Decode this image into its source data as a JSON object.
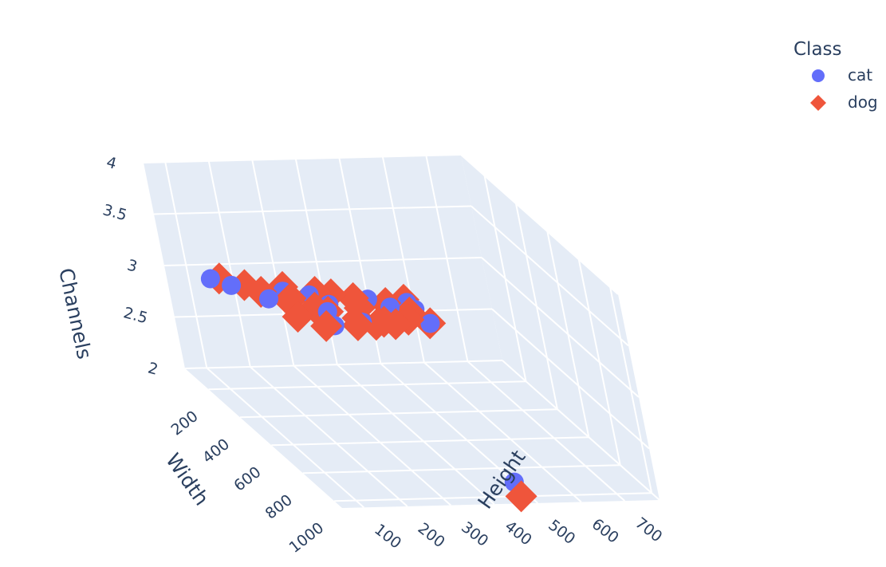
{
  "chart_data": {
    "type": "scatter3d",
    "axes": {
      "x": {
        "title": "Width",
        "ticks": [
          "200",
          "400",
          "600",
          "800",
          "1000"
        ],
        "range": [
          50,
          1050
        ]
      },
      "y": {
        "title": "Height",
        "ticks": [
          "100",
          "200",
          "300",
          "400",
          "500",
          "600",
          "700"
        ],
        "range": [
          50,
          780
        ]
      },
      "z": {
        "title": "Channels",
        "ticks": [
          "2",
          "2.5",
          "3",
          "3.5",
          "4"
        ],
        "range": [
          2,
          4
        ]
      }
    },
    "legend": {
      "title": "Class",
      "placement": "top-right"
    },
    "series": [
      {
        "name": "cat",
        "symbol": "circle",
        "color": "#636efa",
        "points": [
          {
            "x": 500,
            "y": 375,
            "z": 3
          },
          {
            "x": 480,
            "y": 350,
            "z": 3
          },
          {
            "x": 400,
            "y": 500,
            "z": 3
          },
          {
            "x": 350,
            "y": 320,
            "z": 3
          },
          {
            "x": 320,
            "y": 240,
            "z": 3
          },
          {
            "x": 300,
            "y": 200,
            "z": 3
          },
          {
            "x": 250,
            "y": 250,
            "z": 3
          },
          {
            "x": 200,
            "y": 150,
            "z": 3
          },
          {
            "x": 499,
            "y": 280,
            "z": 3
          },
          {
            "x": 450,
            "y": 420,
            "z": 3
          },
          {
            "x": 380,
            "y": 450,
            "z": 3
          },
          {
            "x": 280,
            "y": 300,
            "z": 3
          },
          {
            "x": 150,
            "y": 120,
            "z": 3
          },
          {
            "x": 500,
            "y": 333,
            "z": 3
          },
          {
            "x": 500,
            "y": 499,
            "z": 3
          },
          {
            "x": 350,
            "y": 499,
            "z": 3
          },
          {
            "x": 400,
            "y": 299,
            "z": 3
          },
          {
            "x": 320,
            "y": 420,
            "z": 3
          },
          {
            "x": 900,
            "y": 500,
            "z": 2
          }
        ]
      },
      {
        "name": "dog",
        "symbol": "diamond",
        "color": "#ef553b",
        "points": [
          {
            "x": 500,
            "y": 375,
            "z": 3
          },
          {
            "x": 500,
            "y": 333,
            "z": 3
          },
          {
            "x": 499,
            "y": 499,
            "z": 3
          },
          {
            "x": 320,
            "y": 240,
            "z": 3
          },
          {
            "x": 400,
            "y": 300,
            "z": 3
          },
          {
            "x": 300,
            "y": 250,
            "z": 3
          },
          {
            "x": 450,
            "y": 350,
            "z": 3
          },
          {
            "x": 250,
            "y": 200,
            "z": 3
          },
          {
            "x": 200,
            "y": 180,
            "z": 3
          },
          {
            "x": 350,
            "y": 450,
            "z": 3
          },
          {
            "x": 480,
            "y": 400,
            "z": 3
          },
          {
            "x": 280,
            "y": 350,
            "z": 3
          },
          {
            "x": 420,
            "y": 480,
            "z": 3
          },
          {
            "x": 150,
            "y": 140,
            "z": 3
          },
          {
            "x": 370,
            "y": 280,
            "z": 3
          },
          {
            "x": 500,
            "y": 260,
            "z": 3
          },
          {
            "x": 330,
            "y": 499,
            "z": 3
          },
          {
            "x": 470,
            "y": 460,
            "z": 3
          },
          {
            "x": 380,
            "y": 380,
            "z": 3
          },
          {
            "x": 220,
            "y": 260,
            "z": 3
          },
          {
            "x": 260,
            "y": 320,
            "z": 3
          },
          {
            "x": 430,
            "y": 220,
            "z": 3
          },
          {
            "x": 499,
            "y": 420,
            "z": 3
          },
          {
            "x": 310,
            "y": 390,
            "z": 3
          },
          {
            "x": 1000,
            "y": 480,
            "z": 2
          }
        ]
      }
    ],
    "colors": {
      "scene_background": "#e5ecf6",
      "grid": "#ffffff",
      "text": "#2a3f5f"
    }
  }
}
